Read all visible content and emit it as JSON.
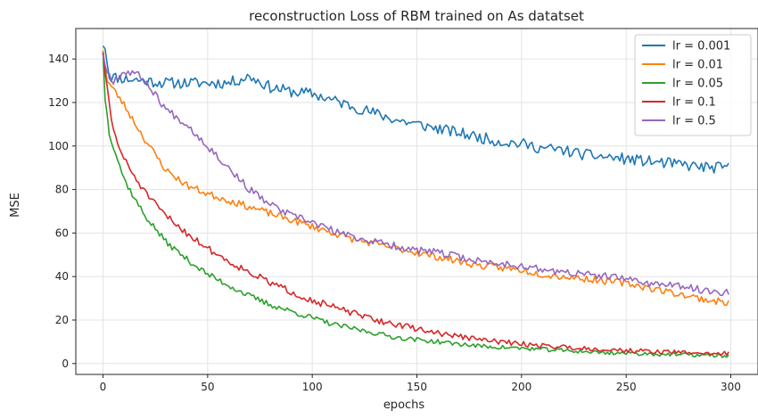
{
  "chart_data": {
    "type": "line",
    "title": "reconstruction Loss of RBM trained on As datatset",
    "xlabel": "epochs",
    "ylabel": "MSE",
    "xlim": [
      -13,
      313
    ],
    "ylim": [
      -5,
      154
    ],
    "xticks": [
      0,
      50,
      100,
      150,
      200,
      250,
      300
    ],
    "yticks": [
      0,
      20,
      40,
      60,
      80,
      100,
      120,
      140
    ],
    "grid": true,
    "legend": "top-right",
    "n_points": 300,
    "series": [
      {
        "name": "lr = 0.001",
        "color": "#1f77b4",
        "anchors": [
          [
            0,
            146
          ],
          [
            1,
            146
          ],
          [
            3,
            132
          ],
          [
            10,
            131
          ],
          [
            30,
            129
          ],
          [
            60,
            129
          ],
          [
            70,
            132
          ],
          [
            80,
            127
          ],
          [
            90,
            125
          ],
          [
            100,
            124
          ],
          [
            110,
            121
          ],
          [
            120,
            118
          ],
          [
            130,
            115
          ],
          [
            140,
            112
          ],
          [
            150,
            110
          ],
          [
            160,
            108
          ],
          [
            170,
            106
          ],
          [
            180,
            104
          ],
          [
            190,
            102
          ],
          [
            200,
            101
          ],
          [
            210,
            99
          ],
          [
            220,
            98
          ],
          [
            230,
            96
          ],
          [
            240,
            95
          ],
          [
            250,
            94
          ],
          [
            260,
            93
          ],
          [
            270,
            92
          ],
          [
            280,
            91
          ],
          [
            290,
            90
          ],
          [
            299,
            90
          ]
        ],
        "noise": 2.6,
        "seed": 11
      },
      {
        "name": "lr = 0.01",
        "color": "#ff7f0e",
        "anchors": [
          [
            0,
            144
          ],
          [
            2,
            130
          ],
          [
            5,
            126
          ],
          [
            10,
            119
          ],
          [
            15,
            111
          ],
          [
            20,
            103
          ],
          [
            25,
            96
          ],
          [
            30,
            89
          ],
          [
            40,
            82
          ],
          [
            50,
            78
          ],
          [
            60,
            75
          ],
          [
            70,
            72
          ],
          [
            80,
            69
          ],
          [
            90,
            66
          ],
          [
            100,
            63
          ],
          [
            110,
            60
          ],
          [
            120,
            57
          ],
          [
            130,
            55
          ],
          [
            140,
            53
          ],
          [
            150,
            51
          ],
          [
            160,
            49
          ],
          [
            170,
            47
          ],
          [
            180,
            45
          ],
          [
            190,
            44
          ],
          [
            200,
            43
          ],
          [
            210,
            41
          ],
          [
            220,
            40
          ],
          [
            230,
            39
          ],
          [
            240,
            38
          ],
          [
            250,
            37
          ],
          [
            260,
            35
          ],
          [
            270,
            33
          ],
          [
            280,
            31
          ],
          [
            290,
            29
          ],
          [
            299,
            28
          ]
        ],
        "noise": 1.6,
        "seed": 23
      },
      {
        "name": "lr = 0.05",
        "color": "#2ca02c",
        "anchors": [
          [
            0,
            143
          ],
          [
            1,
            122
          ],
          [
            3,
            106
          ],
          [
            5,
            100
          ],
          [
            10,
            85
          ],
          [
            15,
            76
          ],
          [
            20,
            68
          ],
          [
            25,
            62
          ],
          [
            30,
            56
          ],
          [
            40,
            48
          ],
          [
            50,
            41
          ],
          [
            60,
            36
          ],
          [
            70,
            31
          ],
          [
            80,
            27
          ],
          [
            90,
            24
          ],
          [
            100,
            21
          ],
          [
            110,
            18
          ],
          [
            120,
            16
          ],
          [
            130,
            14
          ],
          [
            140,
            12
          ],
          [
            150,
            11
          ],
          [
            160,
            10
          ],
          [
            170,
            9
          ],
          [
            180,
            8
          ],
          [
            190,
            7.5
          ],
          [
            200,
            7
          ],
          [
            210,
            6.5
          ],
          [
            220,
            6
          ],
          [
            230,
            5.5
          ],
          [
            240,
            5
          ],
          [
            250,
            4.8
          ],
          [
            260,
            4.5
          ],
          [
            270,
            4.2
          ],
          [
            280,
            4
          ],
          [
            290,
            3.8
          ],
          [
            299,
            3.5
          ]
        ],
        "noise": 1.4,
        "seed": 37
      },
      {
        "name": "lr = 0.1",
        "color": "#d62728",
        "anchors": [
          [
            0,
            143
          ],
          [
            2,
            126
          ],
          [
            4,
            112
          ],
          [
            6,
            104
          ],
          [
            10,
            94
          ],
          [
            15,
            86
          ],
          [
            20,
            79
          ],
          [
            25,
            73
          ],
          [
            30,
            68
          ],
          [
            40,
            60
          ],
          [
            50,
            53
          ],
          [
            60,
            47
          ],
          [
            70,
            42
          ],
          [
            80,
            37
          ],
          [
            90,
            33
          ],
          [
            100,
            29
          ],
          [
            110,
            26
          ],
          [
            120,
            23
          ],
          [
            130,
            20
          ],
          [
            140,
            18
          ],
          [
            150,
            16
          ],
          [
            160,
            14
          ],
          [
            170,
            12.5
          ],
          [
            180,
            11
          ],
          [
            190,
            10
          ],
          [
            200,
            9
          ],
          [
            210,
            8.3
          ],
          [
            220,
            7.6
          ],
          [
            230,
            7
          ],
          [
            240,
            6.5
          ],
          [
            250,
            6
          ],
          [
            260,
            5.6
          ],
          [
            270,
            5.3
          ],
          [
            280,
            5
          ],
          [
            290,
            4.7
          ],
          [
            299,
            4.5
          ]
        ],
        "noise": 1.6,
        "seed": 51
      },
      {
        "name": "lr = 0.5",
        "color": "#9467bd",
        "anchors": [
          [
            0,
            142
          ],
          [
            2,
            134
          ],
          [
            5,
            130
          ],
          [
            10,
            134
          ],
          [
            15,
            134
          ],
          [
            20,
            130
          ],
          [
            24,
            125
          ],
          [
            30,
            117
          ],
          [
            40,
            110
          ],
          [
            50,
            100
          ],
          [
            60,
            90
          ],
          [
            70,
            80
          ],
          [
            80,
            73
          ],
          [
            90,
            68
          ],
          [
            100,
            65
          ],
          [
            110,
            61
          ],
          [
            120,
            58
          ],
          [
            130,
            56
          ],
          [
            140,
            54
          ],
          [
            150,
            52
          ],
          [
            160,
            51
          ],
          [
            170,
            49
          ],
          [
            180,
            47
          ],
          [
            190,
            46
          ],
          [
            200,
            45
          ],
          [
            210,
            43
          ],
          [
            220,
            42
          ],
          [
            230,
            41
          ],
          [
            240,
            40
          ],
          [
            250,
            39
          ],
          [
            260,
            37
          ],
          [
            270,
            36
          ],
          [
            280,
            35
          ],
          [
            290,
            33
          ],
          [
            299,
            33
          ]
        ],
        "noise": 1.7,
        "seed": 67
      }
    ]
  }
}
